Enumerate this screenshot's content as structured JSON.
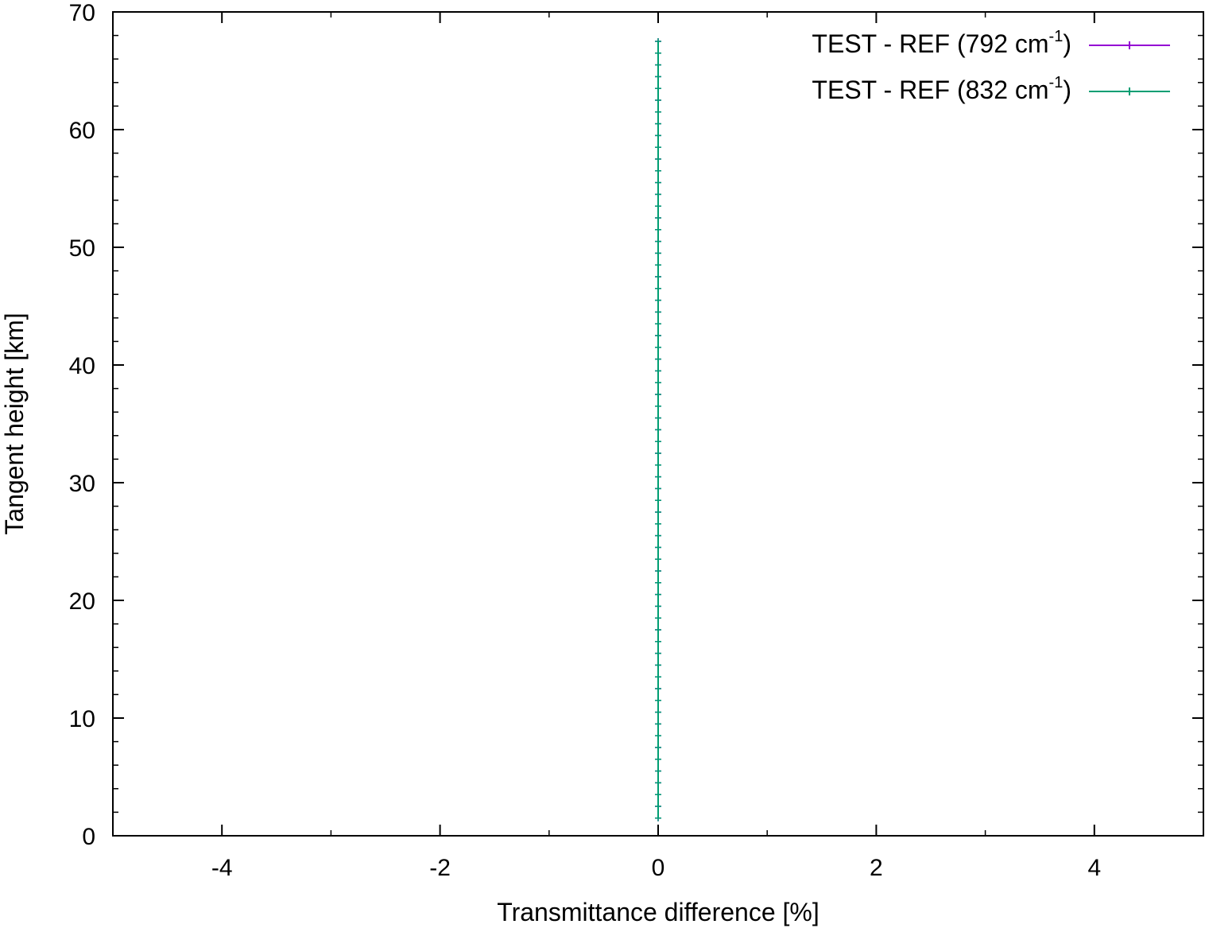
{
  "chart_data": {
    "type": "line",
    "title": "",
    "xlabel": "Transmittance difference [%]",
    "ylabel": "Tangent height [km]",
    "xlim": [
      -5,
      5
    ],
    "ylim": [
      0,
      70
    ],
    "x_ticks": [
      -4,
      -2,
      0,
      2,
      4
    ],
    "y_ticks": [
      0,
      10,
      20,
      30,
      40,
      50,
      60,
      70
    ],
    "x_ticks_labels": [
      "-4",
      "-2",
      "0",
      "2",
      "4"
    ],
    "y_ticks_labels": [
      "0",
      "10",
      "20",
      "30",
      "40",
      "50",
      "60",
      "70"
    ],
    "grid": false,
    "legend_position": "top-right",
    "series": [
      {
        "name_main": "TEST - REF (792 cm",
        "name_sup": "-1",
        "name_end": ")",
        "color": "#9400d3",
        "x": [
          0,
          0,
          0,
          0,
          0,
          0,
          0,
          0,
          0,
          0,
          0,
          0,
          0,
          0,
          0,
          0,
          0,
          0,
          0,
          0,
          0,
          0,
          0,
          0,
          0,
          0,
          0,
          0,
          0,
          0,
          0,
          0,
          0,
          0,
          0,
          0,
          0,
          0,
          0,
          0,
          0,
          0,
          0,
          0,
          0,
          0,
          0,
          0,
          0,
          0,
          0,
          0,
          0,
          0,
          0,
          0,
          0,
          0,
          0,
          0,
          0,
          0,
          0,
          0,
          0,
          0,
          0
        ],
        "y": [
          1.5,
          2.5,
          3.5,
          4.5,
          5.5,
          6.5,
          7.5,
          8.5,
          9.5,
          10.5,
          11.5,
          12.5,
          13.5,
          14.5,
          15.5,
          16.5,
          17.5,
          18.5,
          19.5,
          20.5,
          21.5,
          22.5,
          23.5,
          24.5,
          25.5,
          26.5,
          27.5,
          28.5,
          29.5,
          30.5,
          31.5,
          32.5,
          33.5,
          34.5,
          35.5,
          36.5,
          37.5,
          38.5,
          39.5,
          40.5,
          41.5,
          42.5,
          43.5,
          44.5,
          45.5,
          46.5,
          47.5,
          48.5,
          49.5,
          50.5,
          51.5,
          52.5,
          53.5,
          54.5,
          55.5,
          56.5,
          57.5,
          58.5,
          59.5,
          60.5,
          61.5,
          62.5,
          63.5,
          64.5,
          65.5,
          66.5,
          67.5
        ]
      },
      {
        "name_main": "TEST - REF (832 cm",
        "name_sup": "-1",
        "name_end": ")",
        "color": "#009e73",
        "x": [
          0,
          0,
          0,
          0,
          0,
          0,
          0,
          0,
          0,
          0,
          0,
          0,
          0,
          0,
          0,
          0,
          0,
          0,
          0,
          0,
          0,
          0,
          0,
          0,
          0,
          0,
          0,
          0,
          0,
          0,
          0,
          0,
          0,
          0,
          0,
          0,
          0,
          0,
          0,
          0,
          0,
          0,
          0,
          0,
          0,
          0,
          0,
          0,
          0,
          0,
          0,
          0,
          0,
          0,
          0,
          0,
          0,
          0,
          0,
          0,
          0,
          0,
          0,
          0,
          0,
          0,
          0
        ],
        "y": [
          1.5,
          2.5,
          3.5,
          4.5,
          5.5,
          6.5,
          7.5,
          8.5,
          9.5,
          10.5,
          11.5,
          12.5,
          13.5,
          14.5,
          15.5,
          16.5,
          17.5,
          18.5,
          19.5,
          20.5,
          21.5,
          22.5,
          23.5,
          24.5,
          25.5,
          26.5,
          27.5,
          28.5,
          29.5,
          30.5,
          31.5,
          32.5,
          33.5,
          34.5,
          35.5,
          36.5,
          37.5,
          38.5,
          39.5,
          40.5,
          41.5,
          42.5,
          43.5,
          44.5,
          45.5,
          46.5,
          47.5,
          48.5,
          49.5,
          50.5,
          51.5,
          52.5,
          53.5,
          54.5,
          55.5,
          56.5,
          57.5,
          58.5,
          59.5,
          60.5,
          61.5,
          62.5,
          63.5,
          64.5,
          65.5,
          66.5,
          67.5
        ]
      }
    ]
  }
}
